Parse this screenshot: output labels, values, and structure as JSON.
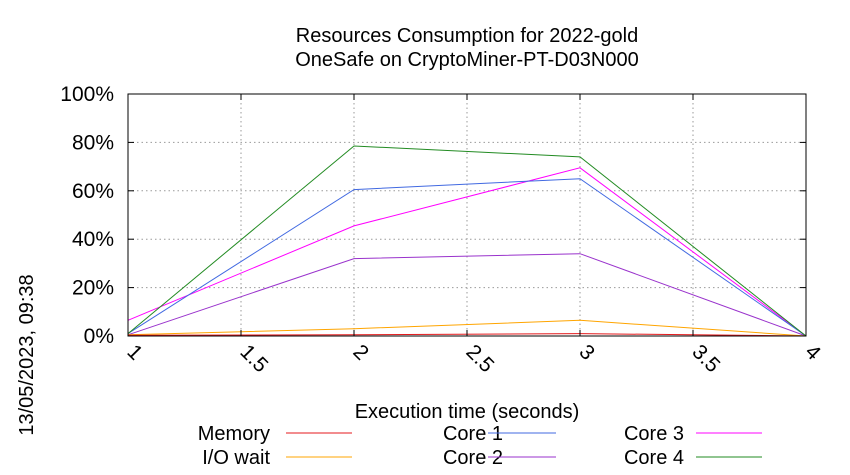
{
  "chart_data": {
    "type": "line",
    "title": "Resources Consumption for 2022-gold",
    "subtitle": "OneSafe on CryptoMiner-PT-D03N000",
    "xlabel": "Execution time (seconds)",
    "ylabel": "",
    "side_label": "13/05/2023, 09:38",
    "xlim": [
      1,
      4
    ],
    "ylim": [
      0,
      100
    ],
    "x_ticks": [
      {
        "value": 1,
        "label": "1"
      },
      {
        "value": 1.5,
        "label": "1.5"
      },
      {
        "value": 2,
        "label": "2"
      },
      {
        "value": 2.5,
        "label": "2.5"
      },
      {
        "value": 3,
        "label": "3"
      },
      {
        "value": 3.5,
        "label": "3.5"
      },
      {
        "value": 4,
        "label": "4"
      }
    ],
    "y_ticks": [
      {
        "value": 0,
        "label": "0%"
      },
      {
        "value": 20,
        "label": "20%"
      },
      {
        "value": 40,
        "label": "40%"
      },
      {
        "value": 60,
        "label": "60%"
      },
      {
        "value": 80,
        "label": "80%"
      },
      {
        "value": 100,
        "label": "100%"
      }
    ],
    "grid": true,
    "legend_position": "bottom",
    "series": [
      {
        "name": "Memory",
        "color": "#e41a1c",
        "x": [
          1,
          2,
          3,
          4
        ],
        "values": [
          0.3,
          0.5,
          1,
          0
        ]
      },
      {
        "name": "I/O wait",
        "color": "#ffa500",
        "x": [
          1,
          2,
          3,
          4
        ],
        "values": [
          0.5,
          3,
          6.5,
          0
        ]
      },
      {
        "name": "Core 1",
        "color": "#4169e1",
        "x": [
          1,
          2,
          3,
          4
        ],
        "values": [
          1,
          60.5,
          65,
          0
        ]
      },
      {
        "name": "Core 2",
        "color": "#9932cc",
        "x": [
          1,
          2,
          3,
          4
        ],
        "values": [
          0.5,
          32,
          34,
          0
        ]
      },
      {
        "name": "Core 3",
        "color": "#ff00ff",
        "x": [
          1,
          2,
          3,
          4
        ],
        "values": [
          6.5,
          45.5,
          69.5,
          0
        ]
      },
      {
        "name": "Core 4",
        "color": "#228b22",
        "x": [
          1,
          2,
          3,
          4
        ],
        "values": [
          1,
          78.5,
          74,
          0
        ]
      }
    ]
  }
}
